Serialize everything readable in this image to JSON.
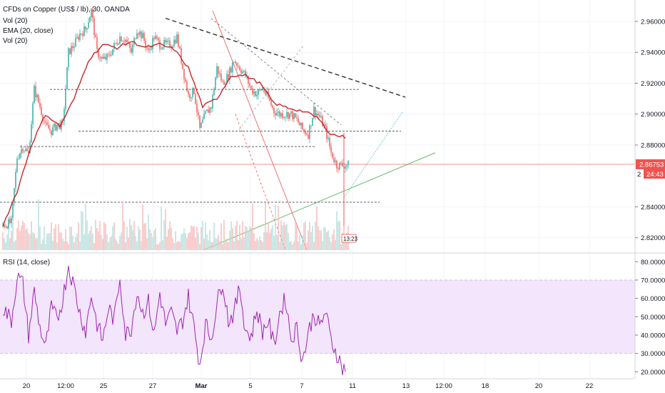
{
  "header": {
    "symbol_line": "CFDs on Copper (US$ / lb), 30, OANDA",
    "indicator_vol": "Vol (20)",
    "indicator_ema": "EMA (20, close)",
    "indicator_vol2": "Vol (20)"
  },
  "rsi_header": {
    "label": "RSI (14, close)"
  },
  "price_axis": {
    "ticks": [
      "2.96000",
      "2.94000",
      "2.92000",
      "2.90000",
      "2.88000",
      "2.84000",
      "2.82000"
    ],
    "current_price_tag": "2.86753",
    "countdown_tag": "24:43",
    "partial_tag": "2"
  },
  "rsi_axis": {
    "ticks": [
      "80.0000",
      "70.0000",
      "60.0000",
      "50.0000",
      "40.0000",
      "30.0000",
      "20.0000"
    ]
  },
  "time_axis": {
    "ticks": [
      "20",
      "12:00",
      "25",
      "27",
      "Mar",
      "5",
      "7",
      "11",
      "13",
      "12:00",
      "18",
      "20",
      "22"
    ]
  },
  "volume_label": "13:23",
  "colors": {
    "candle_up": "#26a69a",
    "candle_down": "#ef5350",
    "ema": "#c62828",
    "rsi_line": "#9c27b0",
    "rsi_band": "#f3e5fc",
    "price_tag": "#ef5350"
  },
  "chart_data": [
    {
      "type": "candlestick",
      "title": "CFDs on Copper (US$ / lb), 30, OANDA",
      "x_ticks": [
        "20",
        "12:00",
        "25",
        "27",
        "Mar",
        "5",
        "7",
        "11",
        "13",
        "12:00",
        "18",
        "20",
        "22"
      ],
      "ylim": [
        2.812,
        2.972
      ],
      "y_ticks": [
        2.96,
        2.94,
        2.92,
        2.9,
        2.88,
        2.84,
        2.82
      ],
      "last_price": 2.86753,
      "close_path": {
        "x_index": [
          0,
          6,
          10,
          14,
          18,
          22,
          26,
          30,
          34,
          38,
          42,
          46,
          50,
          54,
          58,
          62,
          66,
          70,
          74,
          78,
          82,
          86,
          90,
          94,
          98,
          102,
          106,
          110,
          114,
          118,
          122,
          126,
          130,
          134,
          138,
          142,
          146,
          150,
          154,
          158,
          162,
          166,
          170,
          174,
          178,
          182,
          186,
          190,
          194,
          198,
          202,
          206,
          210,
          214,
          218,
          222,
          226,
          230,
          234,
          238,
          242
        ],
        "close": [
          2.828,
          2.83,
          2.872,
          2.879,
          2.874,
          2.916,
          2.905,
          2.892,
          2.889,
          2.893,
          2.893,
          2.94,
          2.945,
          2.952,
          2.955,
          2.967,
          2.94,
          2.935,
          2.937,
          2.944,
          2.95,
          2.948,
          2.94,
          2.955,
          2.95,
          2.94,
          2.95,
          2.945,
          2.945,
          2.945,
          2.95,
          2.93,
          2.912,
          2.915,
          2.89,
          2.9,
          2.905,
          2.93,
          2.92,
          2.925,
          2.935,
          2.93,
          2.925,
          2.916,
          2.913,
          2.917,
          2.91,
          2.902,
          2.9,
          2.9,
          2.9,
          2.896,
          2.89,
          2.887,
          2.903,
          2.898,
          2.89,
          2.875,
          2.867,
          2.867,
          2.867
        ]
      },
      "ema_20": {
        "x_index": [
          0,
          10,
          20,
          30,
          40,
          50,
          60,
          70,
          80,
          90,
          100,
          110,
          120,
          130,
          140,
          150,
          160,
          170,
          180,
          190,
          200,
          210,
          220,
          230,
          240
        ],
        "value": [
          2.828,
          2.85,
          2.88,
          2.9,
          2.892,
          2.91,
          2.935,
          2.945,
          2.943,
          2.947,
          2.943,
          2.945,
          2.942,
          2.93,
          2.905,
          2.91,
          2.925,
          2.925,
          2.92,
          2.907,
          2.904,
          2.902,
          2.898,
          2.887,
          2.885
        ]
      },
      "drawings": {
        "horizontal_levels": [
          2.916,
          2.889,
          2.879,
          2.843
        ],
        "descending_trendline": {
          "from": [
            2.962
          ],
          "to": [
            2.911
          ]
        },
        "ascending_trendline": {
          "from": [
            2.812
          ],
          "to": [
            2.875
          ]
        }
      }
    },
    {
      "type": "line",
      "title": "RSI (14, close)",
      "ylim": [
        17,
        84
      ],
      "y_ticks": [
        80,
        70,
        60,
        50,
        40,
        30,
        20
      ],
      "band": [
        30,
        70
      ],
      "x_index": [
        0,
        6,
        10,
        14,
        18,
        22,
        26,
        30,
        34,
        38,
        42,
        46,
        50,
        54,
        58,
        62,
        66,
        70,
        74,
        78,
        82,
        86,
        90,
        94,
        98,
        102,
        106,
        110,
        114,
        118,
        122,
        126,
        130,
        134,
        138,
        142,
        146,
        150,
        154,
        158,
        162,
        166,
        170,
        174,
        178,
        182,
        186,
        190,
        194,
        198,
        202,
        206,
        210,
        214,
        218,
        222,
        226,
        230,
        234,
        238,
        242
      ],
      "values": [
        55,
        48,
        72,
        68,
        40,
        64,
        44,
        33,
        55,
        48,
        60,
        78,
        66,
        52,
        42,
        62,
        46,
        37,
        55,
        48,
        72,
        40,
        44,
        64,
        52,
        58,
        40,
        63,
        46,
        52,
        42,
        48,
        61,
        44,
        24,
        46,
        38,
        57,
        70,
        48,
        52,
        66,
        43,
        39,
        54,
        42,
        48,
        34,
        52,
        60,
        38,
        44,
        26,
        41,
        52,
        44,
        53,
        37,
        30,
        22,
        22
      ]
    }
  ]
}
